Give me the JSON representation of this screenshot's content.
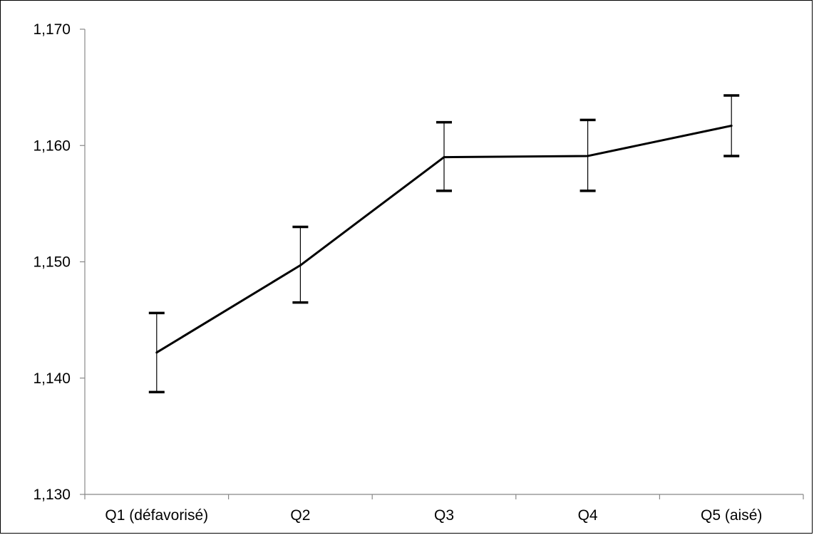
{
  "chart_data": {
    "type": "line",
    "title": "",
    "xlabel": "",
    "ylabel": "",
    "categories": [
      "Q1 (défavorisé)",
      "Q2",
      "Q3",
      "Q4",
      "Q5 (aisé)"
    ],
    "series": [
      {
        "values": [
          1.1422,
          1.1497,
          1.159,
          1.1591,
          1.1617
        ],
        "error_low": [
          1.1388,
          1.1465,
          1.1561,
          1.1561,
          1.1591
        ],
        "error_high": [
          1.1456,
          1.153,
          1.162,
          1.1622,
          1.1643
        ]
      }
    ],
    "ylim": [
      1.13,
      1.17
    ],
    "yticks": [
      1.13,
      1.14,
      1.15,
      1.16,
      1.17
    ],
    "ytick_labels": [
      "1,130",
      "1,140",
      "1,150",
      "1,160",
      "1,170"
    ],
    "grid": false,
    "legend": "none",
    "colors": {
      "line": "#000000",
      "axis": "#888888",
      "text": "#000000"
    }
  }
}
